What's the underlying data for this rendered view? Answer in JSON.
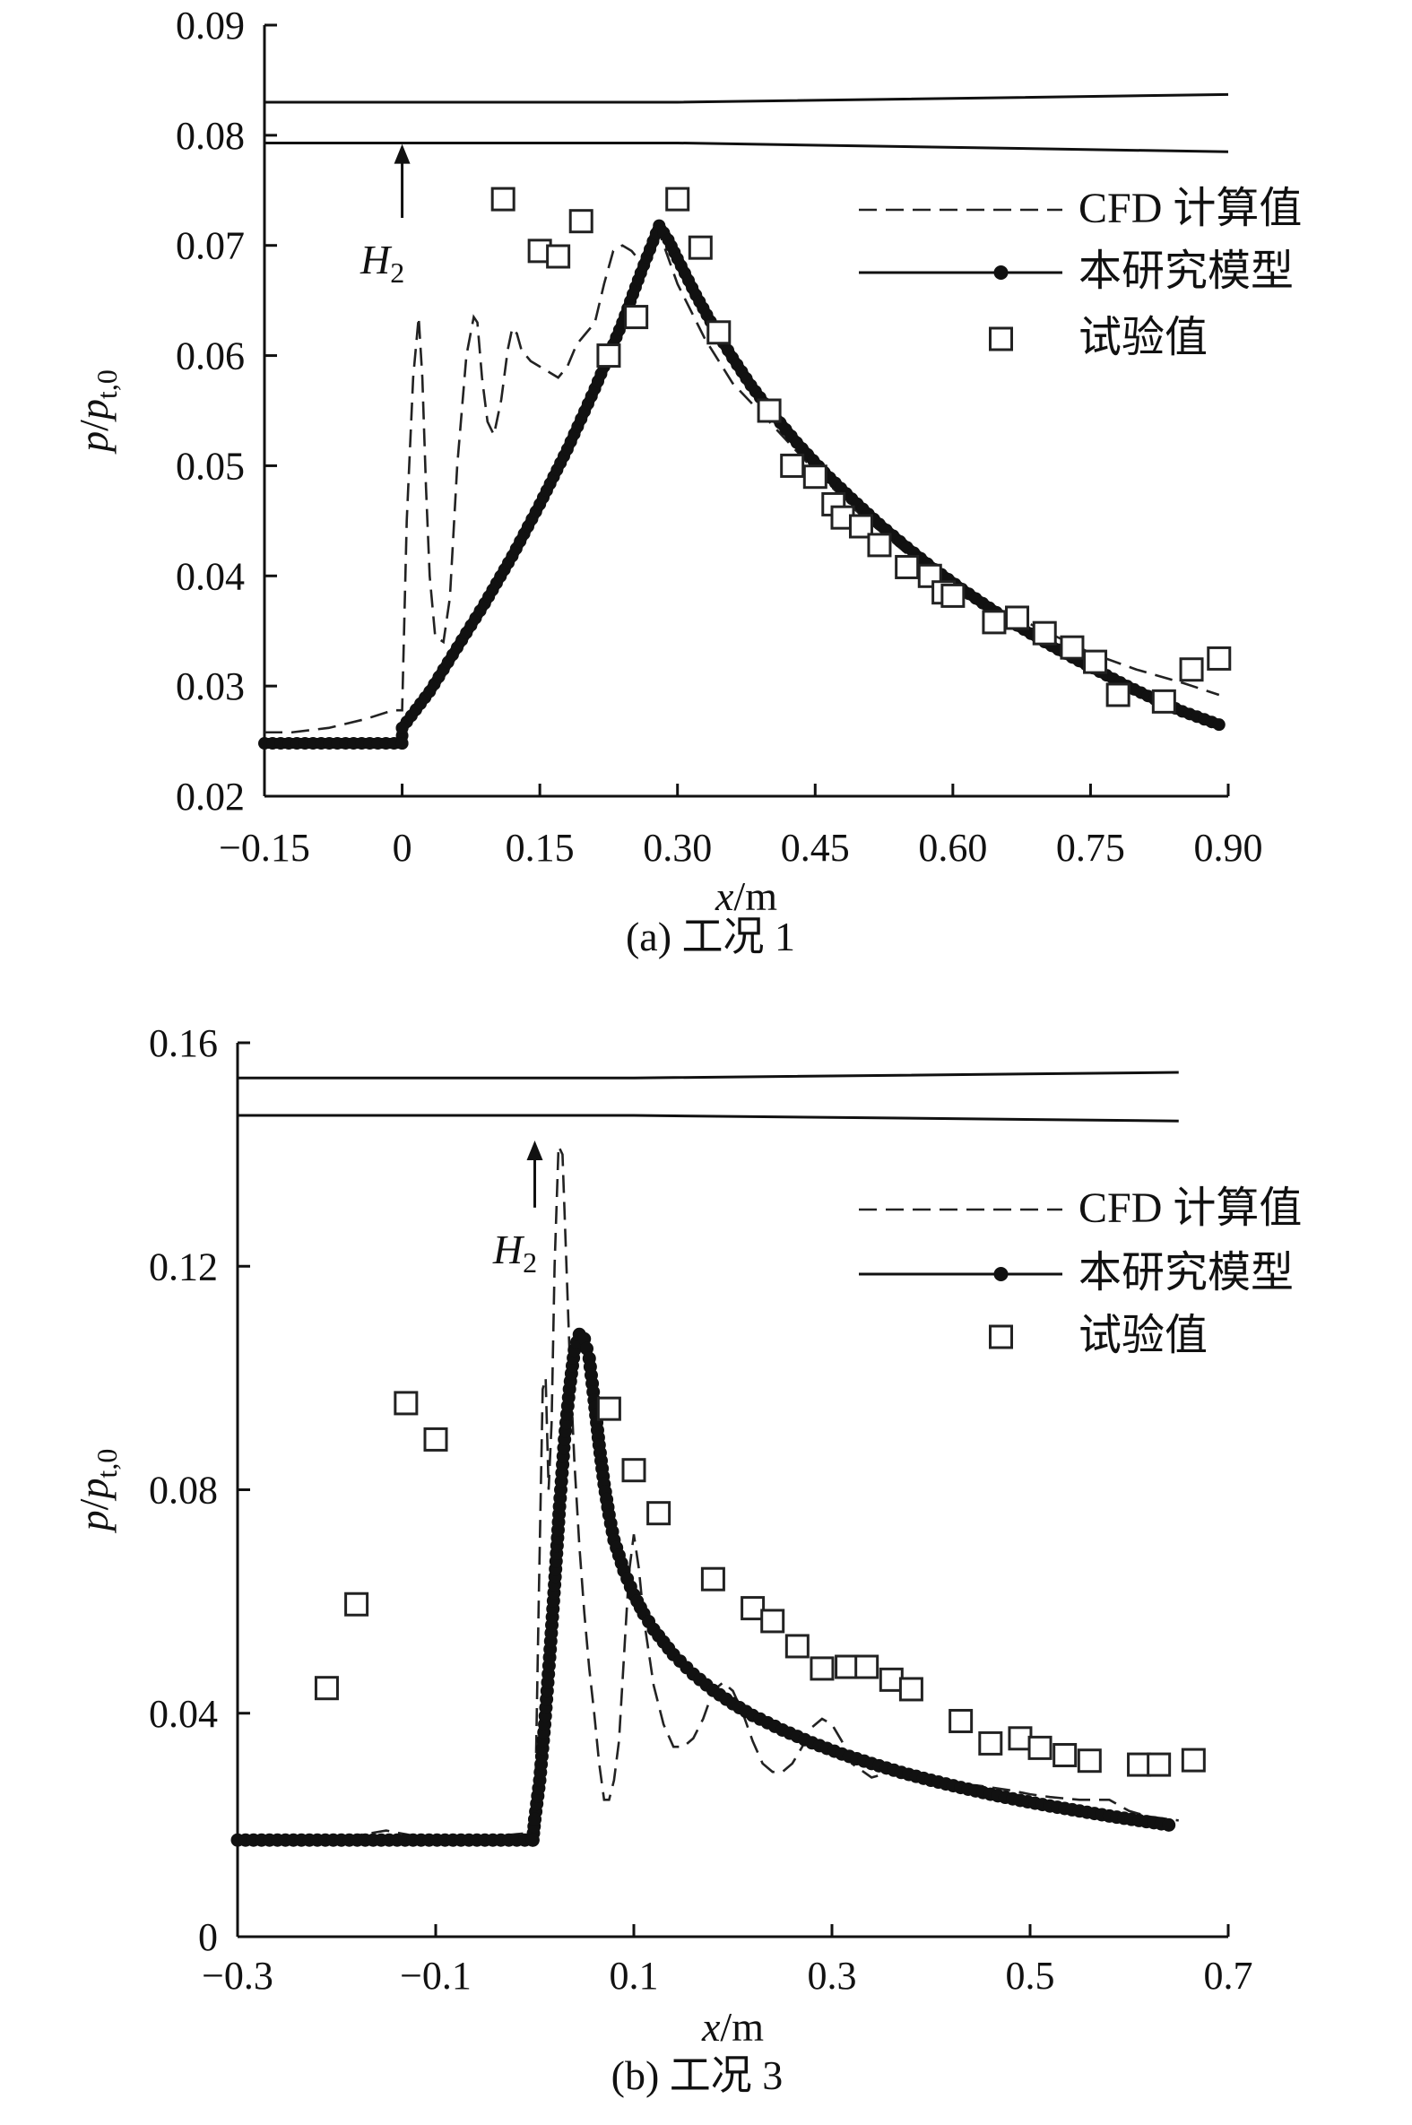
{
  "chart_data": [
    {
      "type": "line",
      "caption": "(a) 工况 1",
      "xlabel": "x/m",
      "ylabel": "p/p_t,0",
      "xlim": [
        -0.15,
        0.9
      ],
      "ylim": [
        0.02,
        0.09
      ],
      "xticks": [
        "−0.15",
        "0",
        "0.15",
        "0.30",
        "0.45",
        "0.60",
        "0.75",
        "0.90"
      ],
      "xtick_values": [
        -0.15,
        0,
        0.15,
        0.3,
        0.45,
        0.6,
        0.75,
        0.9
      ],
      "yticks": [
        "0.02",
        "0.03",
        "0.04",
        "0.05",
        "0.06",
        "0.07",
        "0.08",
        "0.09"
      ],
      "ytick_values": [
        0.02,
        0.03,
        0.04,
        0.05,
        0.06,
        0.07,
        0.08,
        0.09
      ],
      "annotation": {
        "label": "H",
        "sub": "2",
        "x": 0.0,
        "y_tail": 0.0725,
        "y_head": 0.0792
      },
      "legend": [
        "CFD 计算值",
        "本研究模型",
        "试验值"
      ],
      "legend_position": "top-right",
      "geometry_walls": [
        {
          "x": [
            -0.15,
            0.3,
            0.9
          ],
          "y": [
            0.083,
            0.083,
            0.0837
          ]
        },
        {
          "x": [
            -0.15,
            0.3,
            0.9
          ],
          "y": [
            0.0793,
            0.0793,
            0.0785
          ]
        }
      ],
      "series": [
        {
          "name": "CFD 计算值",
          "style": "dashed",
          "x": [
            -0.15,
            -0.12,
            -0.08,
            -0.04,
            -0.01,
            0.0,
            0.005,
            0.012,
            0.018,
            0.022,
            0.026,
            0.03,
            0.036,
            0.045,
            0.052,
            0.06,
            0.07,
            0.078,
            0.082,
            0.087,
            0.093,
            0.1,
            0.108,
            0.115,
            0.12,
            0.125,
            0.13,
            0.14,
            0.15,
            0.16,
            0.17,
            0.18,
            0.19,
            0.2,
            0.21,
            0.22,
            0.23,
            0.24,
            0.25,
            0.26,
            0.27,
            0.28,
            0.3,
            0.33,
            0.36,
            0.4,
            0.45,
            0.5,
            0.55,
            0.6,
            0.65,
            0.7,
            0.75,
            0.8,
            0.85,
            0.89
          ],
          "y": [
            0.0258,
            0.0258,
            0.0262,
            0.027,
            0.0278,
            0.0278,
            0.045,
            0.058,
            0.0635,
            0.058,
            0.048,
            0.04,
            0.0345,
            0.034,
            0.038,
            0.05,
            0.06,
            0.0635,
            0.063,
            0.058,
            0.054,
            0.0528,
            0.056,
            0.0605,
            0.0625,
            0.062,
            0.0605,
            0.0595,
            0.059,
            0.0585,
            0.058,
            0.059,
            0.061,
            0.062,
            0.063,
            0.0665,
            0.0695,
            0.07,
            0.0695,
            0.0685,
            0.069,
            0.0712,
            0.0665,
            0.0615,
            0.0575,
            0.054,
            0.0495,
            0.0455,
            0.042,
            0.0395,
            0.037,
            0.035,
            0.033,
            0.0315,
            0.0303,
            0.0292
          ]
        },
        {
          "name": "本研究模型",
          "style": "solid-thick-dots",
          "x": [
            -0.15,
            0.0,
            0.0,
            0.03,
            0.06,
            0.09,
            0.12,
            0.15,
            0.18,
            0.21,
            0.24,
            0.26,
            0.28,
            0.29,
            0.3,
            0.32,
            0.34,
            0.36,
            0.38,
            0.4,
            0.43,
            0.46,
            0.49,
            0.52,
            0.55,
            0.58,
            0.61,
            0.64,
            0.67,
            0.7,
            0.73,
            0.76,
            0.79,
            0.82,
            0.85,
            0.89
          ],
          "y": [
            0.0248,
            0.0248,
            0.0262,
            0.0295,
            0.0335,
            0.0375,
            0.0418,
            0.0465,
            0.0515,
            0.057,
            0.063,
            0.0675,
            0.0718,
            0.0705,
            0.0688,
            0.0655,
            0.0625,
            0.0598,
            0.0573,
            0.0551,
            0.0521,
            0.0494,
            0.047,
            0.0447,
            0.0426,
            0.0406,
            0.0388,
            0.0371,
            0.0355,
            0.034,
            0.0326,
            0.0313,
            0.03,
            0.0288,
            0.0277,
            0.0265
          ]
        },
        {
          "name": "试验值",
          "style": "markers",
          "x": [
            0.11,
            0.15,
            0.17,
            0.195,
            0.225,
            0.255,
            0.3,
            0.325,
            0.345,
            0.4,
            0.425,
            0.45,
            0.47,
            0.48,
            0.5,
            0.52,
            0.55,
            0.575,
            0.59,
            0.6,
            0.645,
            0.67,
            0.7,
            0.73,
            0.755,
            0.78,
            0.83,
            0.86,
            0.89
          ],
          "y": [
            0.0742,
            0.0695,
            0.069,
            0.0722,
            0.06,
            0.0635,
            0.0742,
            0.0698,
            0.0621,
            0.055,
            0.05,
            0.049,
            0.0465,
            0.0453,
            0.0445,
            0.0428,
            0.0408,
            0.04,
            0.0385,
            0.0382,
            0.0358,
            0.0362,
            0.0348,
            0.0335,
            0.0322,
            0.0292,
            0.0286,
            0.0315,
            0.0325
          ]
        }
      ]
    },
    {
      "type": "line",
      "caption": "(b) 工况 3",
      "xlabel": "x/m",
      "ylabel": "p/p_t,0",
      "xlim": [
        -0.3,
        0.7
      ],
      "ylim": [
        0.0,
        0.16
      ],
      "xticks": [
        "−0.3",
        "−0.1",
        "0.1",
        "0.3",
        "0.5",
        "0.7"
      ],
      "xtick_values": [
        -0.3,
        -0.1,
        0.1,
        0.3,
        0.5,
        0.7
      ],
      "yticks": [
        "0",
        "0.04",
        "0.08",
        "0.12",
        "0.16"
      ],
      "ytick_values": [
        0.0,
        0.04,
        0.08,
        0.12,
        0.16
      ],
      "annotation": {
        "label": "H",
        "sub": "2",
        "x": 0.0,
        "y_tail": 0.1305,
        "y_head": 0.1425
      },
      "legend": [
        "CFD 计算值",
        "本研究模型",
        "试验值"
      ],
      "legend_position": "top-right",
      "geometry_walls": [
        {
          "x": [
            -0.3,
            0.1,
            0.65
          ],
          "y": [
            0.1537,
            0.1537,
            0.1547
          ]
        },
        {
          "x": [
            -0.3,
            0.1,
            0.65
          ],
          "y": [
            0.147,
            0.147,
            0.146
          ]
        }
      ],
      "series": [
        {
          "name": "CFD 计算值",
          "style": "dashed",
          "x": [
            -0.3,
            -0.2,
            -0.15,
            -0.12,
            -0.08,
            -0.04,
            -0.01,
            0.0,
            0.004,
            0.008,
            0.011,
            0.014,
            0.017,
            0.02,
            0.024,
            0.028,
            0.031,
            0.035,
            0.04,
            0.045,
            0.05,
            0.055,
            0.06,
            0.065,
            0.07,
            0.075,
            0.08,
            0.085,
            0.09,
            0.095,
            0.1,
            0.105,
            0.11,
            0.12,
            0.13,
            0.14,
            0.15,
            0.16,
            0.17,
            0.18,
            0.19,
            0.2,
            0.21,
            0.22,
            0.23,
            0.24,
            0.25,
            0.26,
            0.27,
            0.28,
            0.29,
            0.3,
            0.31,
            0.32,
            0.34,
            0.36,
            0.38,
            0.4,
            0.42,
            0.45,
            0.48,
            0.5,
            0.52,
            0.55,
            0.58,
            0.6,
            0.62,
            0.65
          ],
          "y": [
            0.0175,
            0.0175,
            0.019,
            0.018,
            0.018,
            0.018,
            0.0185,
            0.019,
            0.06,
            0.098,
            0.1,
            0.08,
            0.092,
            0.12,
            0.1415,
            0.14,
            0.125,
            0.105,
            0.085,
            0.07,
            0.058,
            0.048,
            0.04,
            0.031,
            0.0245,
            0.0245,
            0.028,
            0.035,
            0.05,
            0.065,
            0.072,
            0.066,
            0.057,
            0.045,
            0.038,
            0.034,
            0.034,
            0.0355,
            0.039,
            0.044,
            0.0455,
            0.044,
            0.04,
            0.035,
            0.031,
            0.0295,
            0.0295,
            0.031,
            0.034,
            0.0375,
            0.039,
            0.038,
            0.035,
            0.031,
            0.0285,
            0.0295,
            0.029,
            0.028,
            0.0275,
            0.027,
            0.0262,
            0.0255,
            0.025,
            0.0245,
            0.0245,
            0.0225,
            0.0215,
            0.0208
          ]
        },
        {
          "name": "本研究模型",
          "style": "solid-thick-dots",
          "x": [
            -0.3,
            -0.002,
            0.0,
            0.005,
            0.01,
            0.015,
            0.02,
            0.025,
            0.03,
            0.035,
            0.04,
            0.045,
            0.05,
            0.055,
            0.06,
            0.065,
            0.07,
            0.075,
            0.08,
            0.09,
            0.1,
            0.11,
            0.12,
            0.14,
            0.16,
            0.18,
            0.2,
            0.22,
            0.25,
            0.28,
            0.31,
            0.34,
            0.37,
            0.4,
            0.43,
            0.46,
            0.49,
            0.52,
            0.55,
            0.58,
            0.61,
            0.64
          ],
          "y": [
            0.0173,
            0.0173,
            0.021,
            0.028,
            0.038,
            0.05,
            0.063,
            0.077,
            0.089,
            0.098,
            0.105,
            0.1078,
            0.107,
            0.1035,
            0.096,
            0.088,
            0.081,
            0.0755,
            0.071,
            0.0655,
            0.0612,
            0.0578,
            0.055,
            0.0505,
            0.047,
            0.0441,
            0.0417,
            0.0396,
            0.037,
            0.0347,
            0.0327,
            0.031,
            0.0294,
            0.028,
            0.0267,
            0.0255,
            0.0244,
            0.0234,
            0.0225,
            0.0216,
            0.0208,
            0.02
          ]
        },
        {
          "name": "试验值",
          "style": "markers",
          "x": [
            -0.21,
            -0.18,
            -0.13,
            -0.1,
            0.075,
            0.1,
            0.125,
            0.18,
            0.22,
            0.24,
            0.265,
            0.29,
            0.315,
            0.335,
            0.36,
            0.38,
            0.43,
            0.46,
            0.49,
            0.51,
            0.535,
            0.56,
            0.61,
            0.63,
            0.665
          ],
          "y": [
            0.0445,
            0.0595,
            0.0955,
            0.089,
            0.0945,
            0.0835,
            0.0758,
            0.064,
            0.0588,
            0.0565,
            0.052,
            0.048,
            0.0483,
            0.0483,
            0.046,
            0.0443,
            0.0386,
            0.0346,
            0.0355,
            0.0338,
            0.0325,
            0.0315,
            0.0308,
            0.0308,
            0.0316
          ]
        }
      ]
    }
  ]
}
